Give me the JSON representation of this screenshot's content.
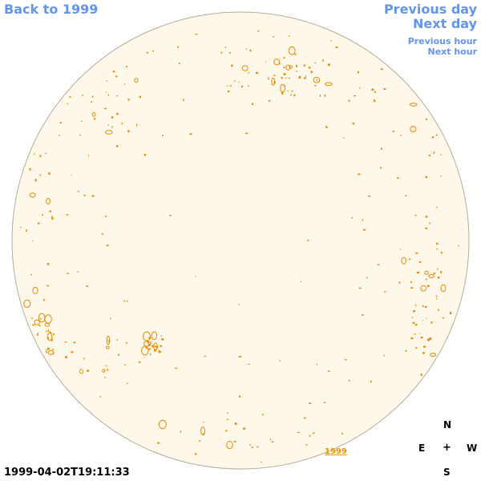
{
  "nav": {
    "back": "Back to 1999",
    "previous_day": "Previous day",
    "next_day": "Next day",
    "previous_hour": "Previous hour",
    "next_hour": "Next hour"
  },
  "timestamp": "1999-04-02T19:11:33",
  "compass": {
    "north": "N",
    "east": "E",
    "center": "+",
    "west": "W",
    "south": "S"
  },
  "year_label": "1999",
  "colors": {
    "link": "#6495ed",
    "disk_fill": "#fdf8ea",
    "disk_edge": "#b5ad9b",
    "contour": "#e68a00"
  }
}
